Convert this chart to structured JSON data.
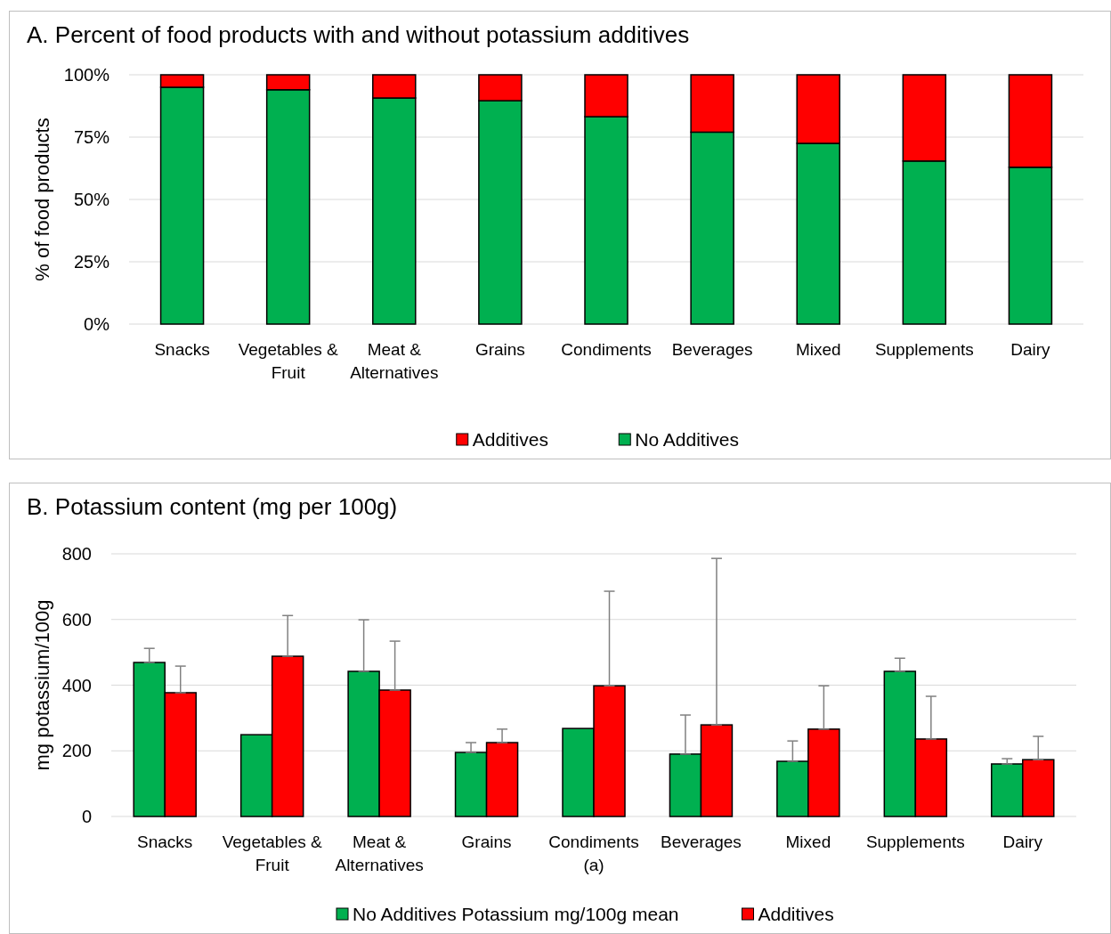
{
  "chart_data": [
    {
      "type": "bar",
      "title": "A. Percent of food products with and without potassium additives",
      "ylabel": "% of food products",
      "stacked": true,
      "grid": "y",
      "legend": "bottom",
      "categories": [
        "Snacks",
        "Vegetables & Fruit",
        "Meat & Alternatives",
        "Grains",
        "Condiments",
        "Beverages",
        "Mixed",
        "Supplements",
        "Dairy"
      ],
      "series": [
        {
          "name": "No Additives",
          "color": "#00b050",
          "values": [
            95,
            94,
            90.7,
            89.6,
            83.2,
            77,
            72.5,
            65.4,
            62.9
          ]
        },
        {
          "name": "Additives",
          "color": "#ff0000",
          "values": [
            5,
            6,
            9.3,
            10.4,
            16.8,
            23,
            27.5,
            34.6,
            37.1
          ]
        }
      ],
      "ylim": [
        0,
        100
      ],
      "yticks": [
        {
          "value": 0,
          "label": "0%"
        },
        {
          "value": 25,
          "label": "25%"
        },
        {
          "value": 50,
          "label": "50%"
        },
        {
          "value": 75,
          "label": "75%"
        },
        {
          "value": 100,
          "label": "100%"
        }
      ]
    },
    {
      "type": "bar",
      "title": "B. Potassium content (mg per 100g)",
      "ylabel": "mg potassium/100g",
      "grid": "y",
      "legend": "bottom",
      "categories": [
        "Snacks",
        "Vegetables & Fruit",
        "Meat & Alternatives",
        "Grains",
        "Condiments (a)",
        "Beverages",
        "Mixed",
        "Supplements",
        "Dairy"
      ],
      "series": [
        {
          "name": "No Additives Potassium mg/100g mean",
          "color": "#00b050",
          "values": [
            469,
            249,
            442,
            195,
            268,
            190,
            168,
            442,
            160
          ],
          "errors": [
            [
              469,
              512
            ],
            null,
            [
              442,
              599
            ],
            [
              195,
              225
            ],
            null,
            [
              190,
              309
            ],
            [
              168,
              230
            ],
            [
              442,
              482
            ],
            [
              160,
              176
            ]
          ]
        },
        {
          "name": "Additives",
          "color": "#ff0000",
          "values": [
            377,
            488,
            385,
            225,
            398,
            279,
            266,
            236,
            173
          ],
          "errors": [
            [
              377,
              458
            ],
            [
              488,
              612
            ],
            [
              385,
              534
            ],
            [
              225,
              266
            ],
            [
              398,
              686
            ],
            [
              279,
              786
            ],
            [
              266,
              398
            ],
            [
              236,
              366
            ],
            [
              173,
              244
            ]
          ]
        }
      ],
      "ylim": [
        0,
        800
      ],
      "yticks": [
        0,
        200,
        400,
        600,
        800
      ]
    }
  ]
}
